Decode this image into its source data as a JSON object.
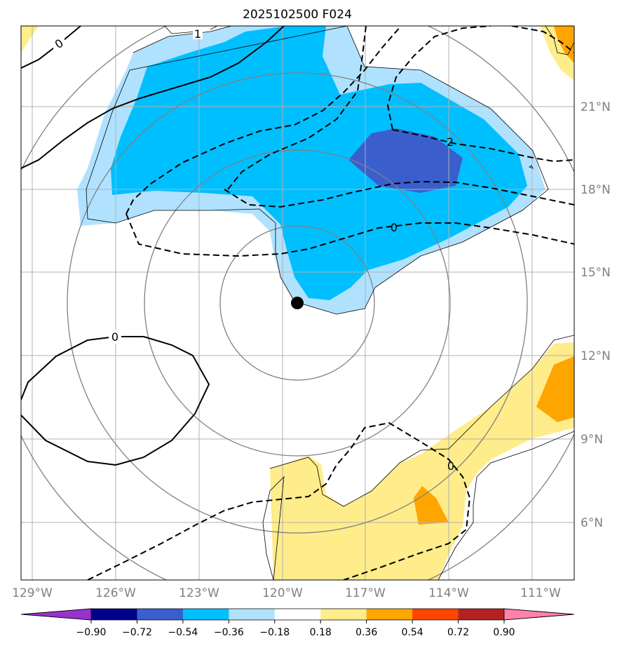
{
  "title": "2025102500 F024",
  "lat_labels": [
    "21°N",
    "18°N",
    "15°N",
    "12°N",
    "9°N",
    "6°N"
  ],
  "lon_labels": [
    "129°W",
    "126°W",
    "123°W",
    "120°W",
    "117°W",
    "114°W",
    "111°W"
  ],
  "colorbar": {
    "ticks": [
      "−0.90",
      "−0.72",
      "−0.54",
      "−0.36",
      "−0.18",
      "0.18",
      "0.36",
      "0.54",
      "0.72",
      "0.90"
    ],
    "colors": [
      "#9932cc",
      "#00008b",
      "#3a5fcd",
      "#00bfff",
      "#b0e2ff",
      "#ffffff",
      "#ffec8b",
      "#ffa500",
      "#ff4500",
      "#b22222",
      "#ff82ab"
    ]
  },
  "contour_labels": [
    "0",
    "1",
    "0",
    "2",
    "0",
    "0"
  ],
  "center_marker": "storm-center-dot"
}
